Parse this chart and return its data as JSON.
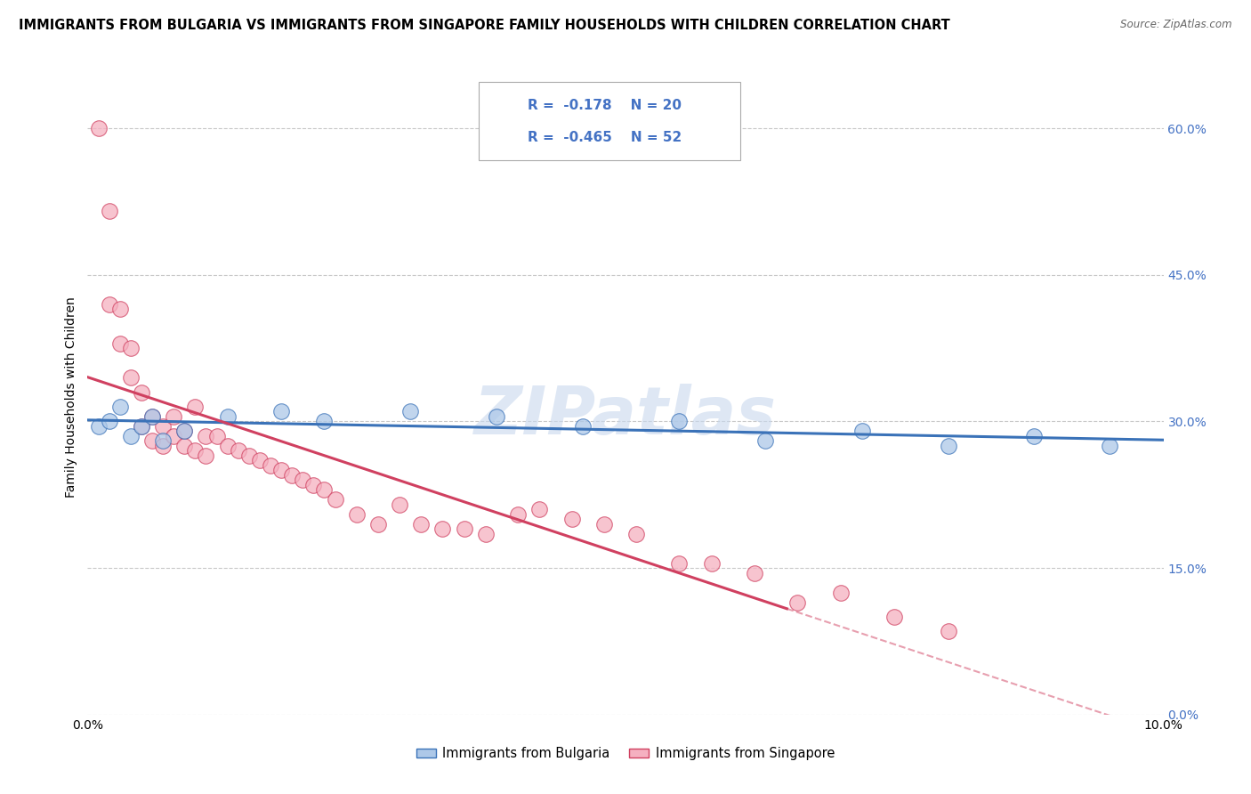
{
  "title": "IMMIGRANTS FROM BULGARIA VS IMMIGRANTS FROM SINGAPORE FAMILY HOUSEHOLDS WITH CHILDREN CORRELATION CHART",
  "source": "Source: ZipAtlas.com",
  "ylabel": "Family Households with Children",
  "xlim": [
    0.0,
    0.1
  ],
  "ylim": [
    0.0,
    0.65
  ],
  "yticks": [
    0.0,
    0.15,
    0.3,
    0.45,
    0.6
  ],
  "ytick_labels": [
    "0.0%",
    "15.0%",
    "30.0%",
    "45.0%",
    "60.0%"
  ],
  "xtick_positions": [
    0.0,
    0.02,
    0.04,
    0.06,
    0.08,
    0.1
  ],
  "xtick_labels": [
    "0.0%",
    "",
    "",
    "",
    "",
    "10.0%"
  ],
  "legend_labels": [
    "Immigrants from Bulgaria",
    "Immigrants from Singapore"
  ],
  "R_bulgaria": -0.178,
  "N_bulgaria": 20,
  "R_singapore": -0.465,
  "N_singapore": 52,
  "color_bulgaria": "#adc8e8",
  "color_singapore": "#f5b0c0",
  "line_color_bulgaria": "#3a72b8",
  "line_color_singapore": "#d04060",
  "watermark": "ZIPatlas",
  "title_fontsize": 10.5,
  "axis_label_fontsize": 10,
  "tick_fontsize": 10,
  "bulgaria_x": [
    0.001,
    0.002,
    0.003,
    0.004,
    0.005,
    0.006,
    0.007,
    0.009,
    0.013,
    0.018,
    0.022,
    0.03,
    0.038,
    0.046,
    0.055,
    0.063,
    0.072,
    0.08,
    0.088,
    0.095
  ],
  "bulgaria_y": [
    0.295,
    0.3,
    0.315,
    0.285,
    0.295,
    0.305,
    0.28,
    0.29,
    0.305,
    0.31,
    0.3,
    0.31,
    0.305,
    0.295,
    0.3,
    0.28,
    0.29,
    0.275,
    0.285,
    0.275
  ],
  "singapore_x": [
    0.001,
    0.002,
    0.002,
    0.003,
    0.003,
    0.004,
    0.004,
    0.005,
    0.005,
    0.006,
    0.006,
    0.007,
    0.007,
    0.008,
    0.008,
    0.009,
    0.009,
    0.01,
    0.01,
    0.011,
    0.011,
    0.012,
    0.013,
    0.014,
    0.015,
    0.016,
    0.017,
    0.018,
    0.019,
    0.02,
    0.021,
    0.022,
    0.023,
    0.025,
    0.027,
    0.029,
    0.031,
    0.033,
    0.035,
    0.037,
    0.04,
    0.042,
    0.045,
    0.048,
    0.051,
    0.055,
    0.058,
    0.062,
    0.066,
    0.07,
    0.075,
    0.08
  ],
  "singapore_y": [
    0.6,
    0.515,
    0.42,
    0.415,
    0.38,
    0.375,
    0.345,
    0.33,
    0.295,
    0.305,
    0.28,
    0.295,
    0.275,
    0.285,
    0.305,
    0.29,
    0.275,
    0.27,
    0.315,
    0.265,
    0.285,
    0.285,
    0.275,
    0.27,
    0.265,
    0.26,
    0.255,
    0.25,
    0.245,
    0.24,
    0.235,
    0.23,
    0.22,
    0.205,
    0.195,
    0.215,
    0.195,
    0.19,
    0.19,
    0.185,
    0.205,
    0.21,
    0.2,
    0.195,
    0.185,
    0.155,
    0.155,
    0.145,
    0.115,
    0.125,
    0.1,
    0.085
  ]
}
